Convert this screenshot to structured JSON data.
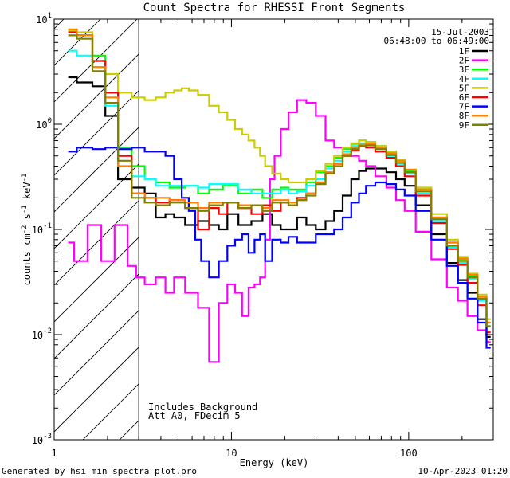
{
  "chart_data": {
    "type": "line",
    "title": "Count Spectra for RHESSI Front Segments",
    "xlabel": "Energy (keV)",
    "ylabel_main": "counts cm",
    "ylabel_sup1": "-2",
    "ylabel_mid1": " s",
    "ylabel_sup2": "-1",
    "ylabel_mid2": " keV",
    "ylabel_sup3": "-1",
    "xscale": "log",
    "yscale": "log",
    "xlim": [
      1,
      300
    ],
    "ylim": [
      0.001,
      10
    ],
    "xticks": [
      {
        "value": 1,
        "label": "1"
      },
      {
        "value": 10,
        "label": "10"
      },
      {
        "value": 100,
        "label": "100"
      }
    ],
    "yticks": [
      {
        "value": 10,
        "base": "10",
        "exp": "1"
      },
      {
        "value": 1,
        "base": "10",
        "exp": "0"
      },
      {
        "value": 0.1,
        "base": "10",
        "exp": "-1"
      },
      {
        "value": 0.01,
        "base": "10",
        "exp": "-2"
      },
      {
        "value": 0.001,
        "base": "10",
        "exp": "-3"
      }
    ],
    "date": "15-Jul-2003",
    "time_range": "06:48:00 to 06:49:00",
    "excluded_region_max_energy": 3,
    "annotations": [
      "Includes Background",
      "Att A0, FDecim 5"
    ],
    "footer_left": "Generated by hsi_min_spectra_plot.pro",
    "footer_right": "10-Apr-2023 01:20",
    "series": [
      {
        "name": "1F",
        "color": "#000000",
        "x": [
          1.2,
          1.5,
          1.8,
          2.1,
          2.5,
          3,
          3.5,
          4,
          4.5,
          5,
          6,
          7,
          8,
          9,
          10,
          12,
          14,
          16,
          18,
          20,
          22,
          25,
          28,
          32,
          36,
          40,
          45,
          50,
          55,
          60,
          70,
          80,
          90,
          100,
          120,
          150,
          180,
          200,
          230,
          260,
          290
        ],
        "y": [
          2.8,
          2.5,
          2.3,
          1.2,
          0.3,
          0.25,
          0.22,
          0.13,
          0.14,
          0.13,
          0.11,
          0.12,
          0.11,
          0.1,
          0.14,
          0.11,
          0.12,
          0.14,
          0.11,
          0.1,
          0.1,
          0.13,
          0.11,
          0.1,
          0.12,
          0.15,
          0.21,
          0.3,
          0.36,
          0.38,
          0.38,
          0.35,
          0.3,
          0.26,
          0.17,
          0.09,
          0.048,
          0.033,
          0.025,
          0.014,
          0.0095
        ]
      },
      {
        "name": "2F",
        "color": "#ff00ff",
        "x": [
          1.2,
          1.4,
          1.7,
          2.0,
          2.4,
          2.8,
          3,
          3.5,
          4,
          4.5,
          5,
          6,
          7,
          8,
          9,
          10,
          11,
          12,
          13,
          14,
          15,
          16,
          17,
          18,
          20,
          22,
          25,
          28,
          32,
          36,
          40,
          45,
          50,
          55,
          60,
          70,
          80,
          90,
          100,
          120,
          150,
          180,
          200,
          230,
          260,
          290
        ],
        "y": [
          0.075,
          0.05,
          0.11,
          0.05,
          0.11,
          0.045,
          0.035,
          0.03,
          0.035,
          0.025,
          0.035,
          0.025,
          0.018,
          0.0055,
          0.02,
          0.03,
          0.025,
          0.015,
          0.028,
          0.03,
          0.035,
          0.08,
          0.3,
          0.5,
          0.9,
          1.3,
          1.7,
          1.6,
          1.2,
          0.7,
          0.6,
          0.55,
          0.5,
          0.45,
          0.4,
          0.32,
          0.25,
          0.19,
          0.15,
          0.095,
          0.052,
          0.028,
          0.021,
          0.015,
          0.011,
          0.0085
        ]
      },
      {
        "name": "3F",
        "color": "#00ff00",
        "x": [
          1.2,
          1.5,
          1.8,
          2.1,
          2.5,
          3,
          3.5,
          4,
          5,
          6,
          7,
          8,
          10,
          12,
          14,
          16,
          18,
          20,
          22,
          25,
          28,
          32,
          36,
          40,
          45,
          50,
          55,
          60,
          70,
          80,
          90,
          100,
          120,
          150,
          180,
          200,
          230,
          260,
          290
        ],
        "y": [
          7.5,
          7.0,
          4.5,
          2.0,
          0.6,
          0.4,
          0.3,
          0.28,
          0.25,
          0.26,
          0.22,
          0.24,
          0.26,
          0.22,
          0.24,
          0.2,
          0.24,
          0.25,
          0.24,
          0.24,
          0.28,
          0.35,
          0.4,
          0.48,
          0.58,
          0.65,
          0.7,
          0.68,
          0.62,
          0.55,
          0.45,
          0.36,
          0.24,
          0.13,
          0.075,
          0.052,
          0.036,
          0.022,
          0.013
        ]
      },
      {
        "name": "4F",
        "color": "#00ffff",
        "x": [
          1.2,
          1.5,
          1.8,
          2.1,
          2.5,
          3,
          3.5,
          4,
          5,
          6,
          7,
          8,
          10,
          12,
          14,
          16,
          18,
          20,
          22,
          25,
          28,
          32,
          36,
          40,
          45,
          50,
          55,
          60,
          70,
          80,
          90,
          100,
          120,
          150,
          180,
          200,
          230,
          260,
          290
        ],
        "y": [
          5.0,
          4.5,
          3.5,
          1.5,
          0.5,
          0.32,
          0.3,
          0.26,
          0.26,
          0.26,
          0.25,
          0.27,
          0.27,
          0.24,
          0.22,
          0.22,
          0.22,
          0.24,
          0.22,
          0.23,
          0.26,
          0.3,
          0.38,
          0.45,
          0.55,
          0.62,
          0.66,
          0.64,
          0.58,
          0.5,
          0.42,
          0.34,
          0.22,
          0.12,
          0.068,
          0.048,
          0.034,
          0.021,
          0.012
        ]
      },
      {
        "name": "5F",
        "color": "#cccc00",
        "x": [
          1.2,
          1.5,
          1.8,
          2.1,
          2.5,
          3,
          3.5,
          4,
          4.5,
          5,
          5.5,
          6,
          7,
          8,
          9,
          10,
          11,
          12,
          13,
          14,
          15,
          16,
          18,
          20,
          22,
          25,
          28,
          32,
          36,
          40,
          45,
          50,
          55,
          60,
          70,
          80,
          90,
          100,
          120,
          150,
          180,
          200,
          230,
          260,
          290
        ],
        "y": [
          7.8,
          7.5,
          4.0,
          3.0,
          2.0,
          1.8,
          1.7,
          1.8,
          2.0,
          2.1,
          2.2,
          2.1,
          1.9,
          1.5,
          1.3,
          1.1,
          0.9,
          0.8,
          0.7,
          0.6,
          0.5,
          0.4,
          0.34,
          0.3,
          0.28,
          0.28,
          0.3,
          0.36,
          0.42,
          0.5,
          0.6,
          0.66,
          0.7,
          0.68,
          0.62,
          0.55,
          0.46,
          0.37,
          0.25,
          0.14,
          0.08,
          0.055,
          0.038,
          0.024,
          0.014
        ]
      },
      {
        "name": "6F",
        "color": "#ff0000",
        "x": [
          1.2,
          1.5,
          1.8,
          2.1,
          2.5,
          3,
          3.5,
          4,
          5,
          6,
          7,
          8,
          9,
          10,
          12,
          14,
          16,
          18,
          20,
          22,
          25,
          28,
          32,
          36,
          40,
          45,
          50,
          55,
          60,
          70,
          80,
          90,
          100,
          120,
          150,
          180,
          200,
          230,
          260,
          290
        ],
        "y": [
          7.5,
          7.0,
          4.0,
          2.0,
          0.5,
          0.22,
          0.2,
          0.18,
          0.19,
          0.16,
          0.1,
          0.16,
          0.14,
          0.18,
          0.16,
          0.14,
          0.17,
          0.15,
          0.18,
          0.17,
          0.2,
          0.22,
          0.28,
          0.34,
          0.42,
          0.5,
          0.56,
          0.62,
          0.6,
          0.55,
          0.48,
          0.4,
          0.32,
          0.21,
          0.115,
          0.065,
          0.046,
          0.031,
          0.019,
          0.0105
        ]
      },
      {
        "name": "7F",
        "color": "#0000ff",
        "x": [
          1.2,
          1.5,
          1.8,
          2.1,
          2.5,
          3,
          3.5,
          4,
          4.5,
          5,
          5.5,
          6,
          6.5,
          7,
          8,
          9,
          10,
          11,
          12,
          13,
          14,
          15,
          16,
          18,
          20,
          22,
          25,
          28,
          32,
          36,
          40,
          45,
          50,
          55,
          60,
          70,
          80,
          90,
          100,
          120,
          150,
          180,
          200,
          230,
          260,
          290
        ],
        "y": [
          0.55,
          0.6,
          0.58,
          0.6,
          0.58,
          0.6,
          0.55,
          0.55,
          0.5,
          0.3,
          0.2,
          0.15,
          0.08,
          0.05,
          0.035,
          0.05,
          0.07,
          0.08,
          0.09,
          0.06,
          0.08,
          0.09,
          0.05,
          0.08,
          0.075,
          0.085,
          0.075,
          0.075,
          0.09,
          0.09,
          0.1,
          0.13,
          0.18,
          0.22,
          0.26,
          0.28,
          0.27,
          0.24,
          0.21,
          0.15,
          0.08,
          0.045,
          0.031,
          0.022,
          0.013,
          0.0075
        ]
      },
      {
        "name": "8F",
        "color": "#ff8000",
        "x": [
          1.2,
          1.5,
          1.8,
          2.1,
          2.5,
          3,
          3.5,
          4,
          5,
          6,
          7,
          8,
          10,
          12,
          14,
          16,
          18,
          20,
          22,
          25,
          28,
          32,
          36,
          40,
          45,
          50,
          55,
          60,
          70,
          80,
          90,
          100,
          120,
          150,
          180,
          200,
          230,
          260,
          290
        ],
        "y": [
          8.0,
          7.0,
          3.5,
          1.8,
          0.4,
          0.22,
          0.2,
          0.2,
          0.19,
          0.18,
          0.16,
          0.18,
          0.18,
          0.17,
          0.17,
          0.16,
          0.19,
          0.19,
          0.18,
          0.19,
          0.22,
          0.28,
          0.35,
          0.42,
          0.52,
          0.6,
          0.64,
          0.65,
          0.6,
          0.53,
          0.45,
          0.37,
          0.24,
          0.13,
          0.075,
          0.053,
          0.037,
          0.023,
          0.013
        ]
      },
      {
        "name": "9F",
        "color": "#808000",
        "x": [
          1.2,
          1.5,
          1.8,
          2.1,
          2.5,
          3,
          3.5,
          4,
          5,
          6,
          7,
          8,
          10,
          12,
          14,
          16,
          18,
          20,
          22,
          25,
          28,
          32,
          36,
          40,
          45,
          50,
          55,
          60,
          70,
          80,
          90,
          100,
          120,
          150,
          180,
          200,
          230,
          260,
          290
        ],
        "y": [
          7.0,
          6.5,
          3.2,
          1.6,
          0.45,
          0.2,
          0.18,
          0.17,
          0.18,
          0.16,
          0.15,
          0.17,
          0.18,
          0.16,
          0.17,
          0.15,
          0.18,
          0.18,
          0.17,
          0.19,
          0.21,
          0.27,
          0.34,
          0.4,
          0.5,
          0.58,
          0.62,
          0.63,
          0.58,
          0.51,
          0.43,
          0.35,
          0.23,
          0.125,
          0.07,
          0.05,
          0.035,
          0.022,
          0.012
        ]
      }
    ]
  }
}
